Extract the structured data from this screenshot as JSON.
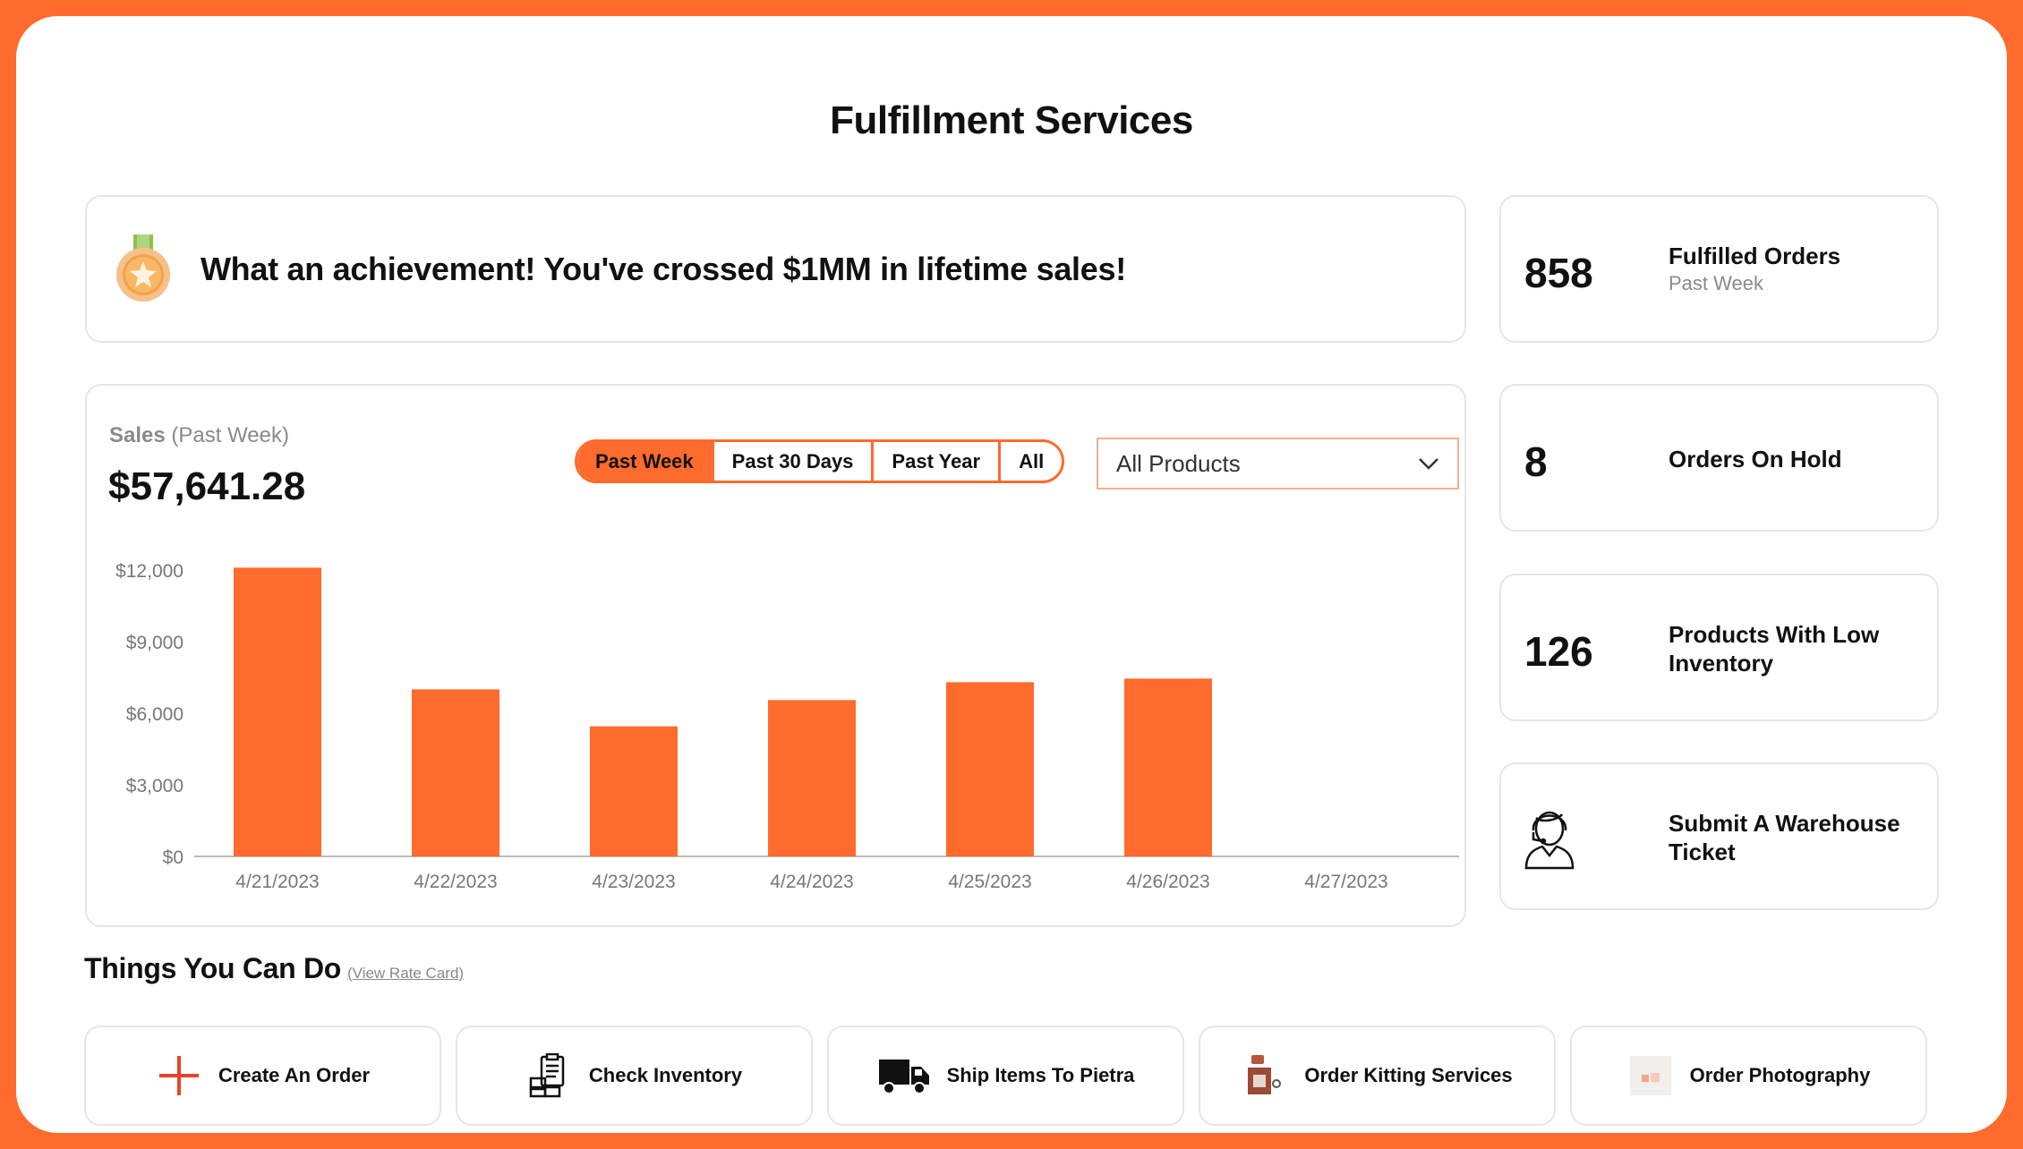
{
  "page": {
    "title": "Fulfillment Services"
  },
  "achievement": {
    "text": "What an achievement! You've crossed $1MM in lifetime sales!",
    "icon": "medal-icon"
  },
  "stats": [
    {
      "value": "858",
      "label": "Fulfilled Orders",
      "sub": "Past Week"
    },
    {
      "value": "8",
      "label": "Orders On Hold"
    },
    {
      "value": "126",
      "label": "Products With Low Inventory"
    },
    {
      "label": "Submit A Warehouse Ticket",
      "icon": "support-agent-icon"
    }
  ],
  "sales": {
    "label": "Sales",
    "period": "(Past Week)",
    "total": "$57,641.28",
    "ranges": [
      "Past Week",
      "Past 30 Days",
      "Past Year",
      "All"
    ],
    "active_range": "Past Week",
    "product_filter": "All Products"
  },
  "chart_data": {
    "type": "bar",
    "categories": [
      "4/21/2023",
      "4/22/2023",
      "4/23/2023",
      "4/24/2023",
      "4/25/2023",
      "4/26/2023",
      "4/27/2023"
    ],
    "values": [
      12100,
      7000,
      5450,
      6550,
      7300,
      7450,
      0
    ],
    "ylim": [
      0,
      12000
    ],
    "yticks": [
      "$0",
      "$3,000",
      "$6,000",
      "$9,000",
      "$12,000"
    ],
    "ytick_values": [
      0,
      3000,
      6000,
      9000,
      12000
    ],
    "color": "#ff6b2c",
    "grid": false
  },
  "actions_section": {
    "title": "Things You Can Do",
    "link": "(View Rate Card)",
    "items": [
      {
        "label": "Create An Order",
        "icon": "plus-icon"
      },
      {
        "label": "Check Inventory",
        "icon": "inventory-clipboard-icon"
      },
      {
        "label": "Ship Items To Pietra",
        "icon": "truck-icon"
      },
      {
        "label": "Order Kitting Services",
        "icon": "kitting-box-icon"
      },
      {
        "label": "Order Photography",
        "icon": "photo-icon"
      }
    ]
  },
  "colors": {
    "accent": "#ff6b2c",
    "border": "#e6e6e6",
    "muted": "#8a8a8a"
  }
}
